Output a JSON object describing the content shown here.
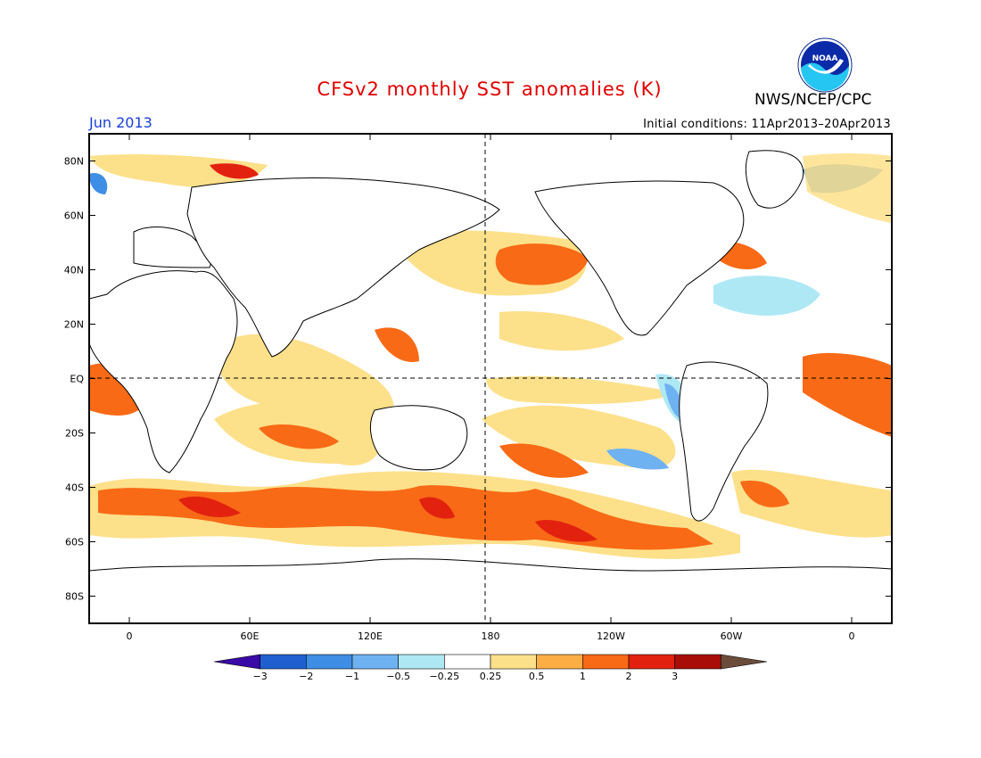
{
  "title": "CFSv2 monthly SST anomalies (K)",
  "org": "NWS/NCEP/CPC",
  "logo_text": "NOAA",
  "month_label": "Jun 2013",
  "init_label": "Initial conditions: 11Apr2013–20Apr2013",
  "map": {
    "lon_range": [
      -20,
      380
    ],
    "lat_range": [
      -90,
      90
    ],
    "y_ticks": [
      {
        "lat": 80,
        "label": "80N"
      },
      {
        "lat": 60,
        "label": "60N"
      },
      {
        "lat": 40,
        "label": "40N"
      },
      {
        "lat": 20,
        "label": "20N"
      },
      {
        "lat": 0,
        "label": "EQ"
      },
      {
        "lat": -20,
        "label": "20S"
      },
      {
        "lat": -40,
        "label": "40S"
      },
      {
        "lat": -60,
        "label": "60S"
      },
      {
        "lat": -80,
        "label": "80S"
      }
    ],
    "x_ticks": [
      {
        "lon": 0,
        "label": "0"
      },
      {
        "lon": 60,
        "label": "60E"
      },
      {
        "lon": 120,
        "label": "120E"
      },
      {
        "lon": 180,
        "label": "180"
      },
      {
        "lon": 240,
        "label": "120W"
      },
      {
        "lon": 300,
        "label": "60W"
      },
      {
        "lon": 360,
        "label": "0"
      }
    ],
    "equator_dashed": true,
    "dateline_dashed": true
  },
  "colorbar": {
    "colors": [
      "#3a0aa8",
      "#1f5fd0",
      "#3f8ee6",
      "#6fb2f2",
      "#aee8f4",
      "#ffffff",
      "#fde08a",
      "#fcae45",
      "#f86a16",
      "#e2220f",
      "#a80d08",
      "#6b4c3a"
    ],
    "labels": [
      "−3",
      "−2",
      "−1",
      "−0.5",
      "−0.25",
      "0.25",
      "0.5",
      "1",
      "2",
      "3"
    ]
  }
}
